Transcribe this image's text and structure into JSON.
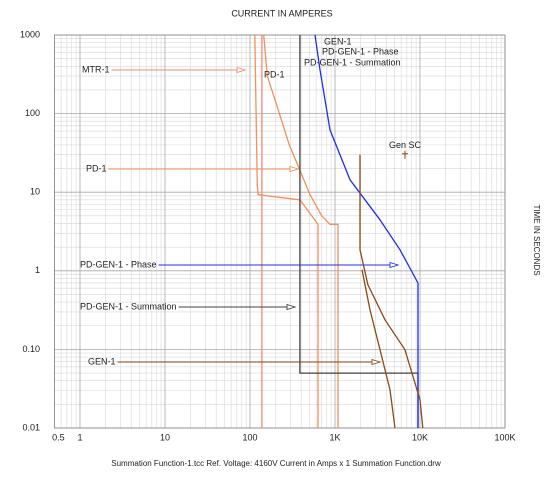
{
  "chart_data": {
    "type": "line",
    "title": "CURRENT IN AMPERES",
    "y_label": "TIME IN SECONDS",
    "footer": "Summation Function-1.tcc   Ref. Voltage: 4160V   Current in Amps x 1   Summation Function.drw",
    "x_scale": "log",
    "y_scale": "log",
    "grid": true,
    "minor_grid": true,
    "xlim": [
      0.5,
      100000
    ],
    "ylim": [
      0.01,
      1000
    ],
    "xticks": [
      0.5,
      1,
      10,
      100,
      {
        "value": 1000,
        "label": "1K"
      },
      {
        "value": 10000,
        "label": "10K"
      },
      {
        "value": 100000,
        "label": "100K"
      }
    ],
    "yticks": [
      0.01,
      {
        "value": 0.1,
        "label": "0.10"
      },
      1,
      10,
      100,
      1000
    ],
    "series": [
      {
        "name": "MTR-1",
        "color": "#f08878",
        "x": [
          138,
          138
        ],
        "y": [
          1000,
          0.01
        ]
      },
      {
        "name": "PD-1",
        "color": "#f0905a",
        "x": [
          114,
          118,
          122,
          125,
          160,
          387,
          500,
          631,
          631,
          null,
          145,
          160,
          197,
          290,
          387,
          508,
          700,
          873,
          1084,
          1084
        ],
        "y": [
          1000,
          100,
          12,
          9.3,
          9,
          8,
          5.5,
          3.9,
          0.01,
          null,
          1000,
          300,
          150,
          40,
          19,
          9.3,
          5,
          3.9,
          3.9,
          0.01
        ]
      },
      {
        "name": "PD-GEN-1 - Summation",
        "color": "#404040",
        "x": [
          387,
          387,
          9470,
          9470
        ],
        "y": [
          1000,
          0.05,
          0.05,
          0.01
        ]
      },
      {
        "name": "PD-GEN-1 - Phase",
        "color": "#1f2ff0",
        "x": [
          582,
          667,
          873,
          1500,
          3380,
          5820,
          9470,
          9470
        ],
        "y": [
          1000,
          360,
          62,
          14.4,
          4.46,
          1.85,
          0.7,
          0.01
        ]
      },
      {
        "name": "GEN-1",
        "color": "#8b4a1a",
        "x": [
          1970,
          1970,
          2440,
          3870,
          6650,
          10000,
          10800,
          null,
          2080,
          2580,
          3380,
          4440,
          5080
        ],
        "y": [
          29.9,
          1.85,
          0.664,
          0.238,
          0.099,
          0.0229,
          0.01,
          null,
          1.03,
          0.319,
          0.099,
          0.0306,
          0.01
        ]
      }
    ],
    "annotations": [
      {
        "text": "Gen SC",
        "x": 6660,
        "y": 29.9,
        "color": "#8b4a1a"
      }
    ]
  }
}
